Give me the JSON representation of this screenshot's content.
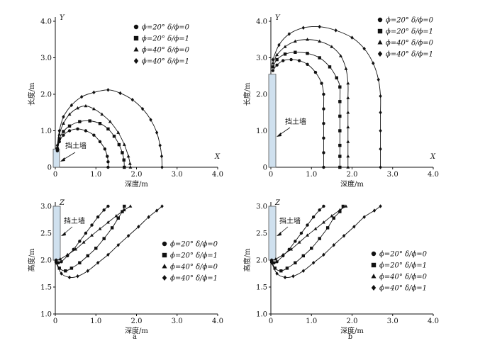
{
  "panel_labels": [
    "a",
    "b"
  ],
  "wall_label": "挡土墙",
  "legend_entries": [
    "ϕ=20°  δ/ϕ=0",
    "ϕ=20°  δ/ϕ=1",
    "ϕ=40°  δ/ϕ=0",
    "ϕ=40°  δ/ϕ=1"
  ],
  "chart_data": [
    {
      "id": "top-left",
      "type": "line",
      "xlabel": "深度/m",
      "ylabel": "长度/m",
      "x_axis_letter": "X",
      "y_axis_letter": "Y",
      "xlim": [
        0,
        4
      ],
      "ylim": [
        0,
        4
      ],
      "xticks": [
        "0",
        "1.0",
        "2.0",
        "3.0",
        "4.0"
      ],
      "yticks": [
        "0",
        "1.0",
        "2.0",
        "3.0",
        "4.0"
      ],
      "legend_position": "top-right",
      "wall": {
        "x": [
          0,
          0.05
        ],
        "y": [
          0,
          0.5
        ]
      },
      "series": [
        {
          "name": "ϕ=20°  δ/ϕ=0",
          "marker": "circle",
          "points": [
            [
              0.05,
              0.45
            ],
            [
              0.1,
              0.7
            ],
            [
              0.2,
              0.88
            ],
            [
              0.35,
              1.0
            ],
            [
              0.55,
              1.05
            ],
            [
              0.75,
              1.0
            ],
            [
              0.95,
              0.88
            ],
            [
              1.1,
              0.7
            ],
            [
              1.22,
              0.5
            ],
            [
              1.28,
              0.3
            ],
            [
              1.3,
              0.15
            ],
            [
              1.3,
              0
            ]
          ]
        },
        {
          "name": "ϕ=20°  δ/ϕ=1",
          "marker": "square",
          "points": [
            [
              0.05,
              0.5
            ],
            [
              0.1,
              0.78
            ],
            [
              0.2,
              0.98
            ],
            [
              0.35,
              1.13
            ],
            [
              0.6,
              1.25
            ],
            [
              0.85,
              1.27
            ],
            [
              1.1,
              1.2
            ],
            [
              1.3,
              1.05
            ],
            [
              1.45,
              0.85
            ],
            [
              1.57,
              0.62
            ],
            [
              1.65,
              0.4
            ],
            [
              1.69,
              0.2
            ],
            [
              1.7,
              0
            ]
          ]
        },
        {
          "name": "ϕ=40°  δ/ϕ=0",
          "marker": "triangle",
          "points": [
            [
              0.05,
              0.55
            ],
            [
              0.1,
              0.9
            ],
            [
              0.2,
              1.2
            ],
            [
              0.35,
              1.45
            ],
            [
              0.55,
              1.62
            ],
            [
              0.75,
              1.68
            ],
            [
              0.95,
              1.6
            ],
            [
              1.15,
              1.45
            ],
            [
              1.35,
              1.25
            ],
            [
              1.55,
              0.95
            ],
            [
              1.7,
              0.62
            ],
            [
              1.8,
              0.3
            ],
            [
              1.84,
              0.1
            ],
            [
              1.85,
              0
            ]
          ]
        },
        {
          "name": "ϕ=40°  δ/ϕ=1",
          "marker": "diamond",
          "points": [
            [
              0.05,
              0.6
            ],
            [
              0.1,
              1.0
            ],
            [
              0.2,
              1.38
            ],
            [
              0.4,
              1.7
            ],
            [
              0.65,
              1.93
            ],
            [
              0.95,
              2.05
            ],
            [
              1.3,
              2.12
            ],
            [
              1.6,
              2.03
            ],
            [
              1.9,
              1.85
            ],
            [
              2.15,
              1.6
            ],
            [
              2.35,
              1.3
            ],
            [
              2.5,
              0.95
            ],
            [
              2.58,
              0.6
            ],
            [
              2.62,
              0.3
            ],
            [
              2.63,
              0
            ]
          ]
        }
      ]
    },
    {
      "id": "top-right",
      "type": "line",
      "xlabel": "深度/m",
      "ylabel": "长度/m",
      "x_axis_letter": "X",
      "y_axis_letter": "Y",
      "xlim": [
        0,
        4
      ],
      "ylim": [
        0,
        4
      ],
      "xticks": [
        "0",
        "1.0",
        "2.0",
        "3.0",
        "4.0"
      ],
      "yticks": [
        "0",
        "1.0",
        "2.0",
        "3.0",
        "4.0"
      ],
      "legend_position": "top-right",
      "wall": {
        "x": [
          0,
          0.07
        ],
        "y": [
          0,
          2.55
        ]
      },
      "series": [
        {
          "name": "ϕ=20°  δ/ϕ=0",
          "marker": "circle",
          "points": [
            [
              0.05,
              2.65
            ],
            [
              0.15,
              2.8
            ],
            [
              0.3,
              2.92
            ],
            [
              0.5,
              2.95
            ],
            [
              0.7,
              2.92
            ],
            [
              0.9,
              2.82
            ],
            [
              1.1,
              2.6
            ],
            [
              1.25,
              2.3
            ],
            [
              1.3,
              2.0
            ],
            [
              1.3,
              1.6
            ],
            [
              1.3,
              1.2
            ],
            [
              1.3,
              0.8
            ],
            [
              1.3,
              0.4
            ],
            [
              1.3,
              0
            ]
          ]
        },
        {
          "name": "ϕ=20°  δ/ϕ=1",
          "marker": "square",
          "points": [
            [
              0.05,
              2.75
            ],
            [
              0.15,
              2.95
            ],
            [
              0.35,
              3.1
            ],
            [
              0.6,
              3.15
            ],
            [
              0.9,
              3.12
            ],
            [
              1.2,
              3.0
            ],
            [
              1.45,
              2.75
            ],
            [
              1.62,
              2.45
            ],
            [
              1.7,
              2.2
            ],
            [
              1.7,
              1.8
            ],
            [
              1.7,
              1.4
            ],
            [
              1.7,
              1.0
            ],
            [
              1.7,
              0.6
            ],
            [
              1.7,
              0.3
            ],
            [
              1.7,
              0
            ]
          ]
        },
        {
          "name": "ϕ=40°  δ/ϕ=0",
          "marker": "triangle",
          "points": [
            [
              0.05,
              2.85
            ],
            [
              0.15,
              3.08
            ],
            [
              0.35,
              3.3
            ],
            [
              0.6,
              3.45
            ],
            [
              0.9,
              3.5
            ],
            [
              1.2,
              3.45
            ],
            [
              1.5,
              3.3
            ],
            [
              1.72,
              3.05
            ],
            [
              1.85,
              2.7
            ],
            [
              1.9,
              2.3
            ],
            [
              1.9,
              1.9
            ],
            [
              1.9,
              1.5
            ],
            [
              1.9,
              1.1
            ],
            [
              1.9,
              0.7
            ],
            [
              1.9,
              0.3
            ],
            [
              1.9,
              0
            ]
          ]
        },
        {
          "name": "ϕ=40°  δ/ϕ=1",
          "marker": "diamond",
          "points": [
            [
              0.05,
              2.95
            ],
            [
              0.2,
              3.35
            ],
            [
              0.45,
              3.65
            ],
            [
              0.8,
              3.82
            ],
            [
              1.2,
              3.85
            ],
            [
              1.6,
              3.75
            ],
            [
              2.0,
              3.55
            ],
            [
              2.3,
              3.25
            ],
            [
              2.52,
              2.85
            ],
            [
              2.65,
              2.4
            ],
            [
              2.7,
              1.95
            ],
            [
              2.7,
              1.5
            ],
            [
              2.7,
              1.0
            ],
            [
              2.7,
              0.5
            ],
            [
              2.7,
              0
            ]
          ]
        }
      ]
    },
    {
      "id": "bottom-left",
      "type": "line",
      "xlabel": "深度/m",
      "ylabel": "高度/m",
      "x_axis_letter": "",
      "y_axis_letter": "Z",
      "xlim": [
        0,
        4
      ],
      "ylim": [
        1.0,
        3.0
      ],
      "xticks": [
        "0",
        "1.0",
        "2.0",
        "3.0",
        "4.0"
      ],
      "yticks": [
        "1.0",
        "1.5",
        "2.0",
        "2.5",
        "3.0"
      ],
      "legend_position": "right",
      "wall": {
        "x": [
          0,
          0.07
        ],
        "y": [
          2.0,
          3.0
        ]
      },
      "series": [
        {
          "name": "ϕ=20°  δ/ϕ=0",
          "marker": "circle",
          "points": [
            [
              0.02,
              2.0
            ],
            [
              0.08,
              1.95
            ],
            [
              0.15,
              1.97
            ],
            [
              0.3,
              2.08
            ],
            [
              0.45,
              2.2
            ],
            [
              0.6,
              2.35
            ],
            [
              0.75,
              2.5
            ],
            [
              0.9,
              2.65
            ],
            [
              1.05,
              2.8
            ],
            [
              1.2,
              2.93
            ],
            [
              1.3,
              3.0
            ]
          ]
        },
        {
          "name": "ϕ=20°  δ/ϕ=1",
          "marker": "square",
          "points": [
            [
              0.02,
              1.98
            ],
            [
              0.1,
              1.85
            ],
            [
              0.25,
              1.8
            ],
            [
              0.4,
              1.85
            ],
            [
              0.6,
              1.95
            ],
            [
              0.8,
              2.08
            ],
            [
              1.0,
              2.22
            ],
            [
              1.2,
              2.4
            ],
            [
              1.4,
              2.6
            ],
            [
              1.55,
              2.78
            ],
            [
              1.65,
              2.9
            ],
            [
              1.7,
              3.0
            ]
          ]
        },
        {
          "name": "ϕ=40°  δ/ϕ=0",
          "marker": "triangle",
          "points": [
            [
              0.02,
              2.0
            ],
            [
              0.12,
              2.02
            ],
            [
              0.3,
              2.1
            ],
            [
              0.5,
              2.2
            ],
            [
              0.7,
              2.33
            ],
            [
              0.9,
              2.46
            ],
            [
              1.1,
              2.58
            ],
            [
              1.3,
              2.7
            ],
            [
              1.5,
              2.82
            ],
            [
              1.7,
              2.93
            ],
            [
              1.85,
              3.0
            ]
          ]
        },
        {
          "name": "ϕ=40°  δ/ϕ=1",
          "marker": "diamond",
          "points": [
            [
              0.02,
              1.95
            ],
            [
              0.15,
              1.75
            ],
            [
              0.35,
              1.68
            ],
            [
              0.55,
              1.7
            ],
            [
              0.8,
              1.8
            ],
            [
              1.05,
              1.95
            ],
            [
              1.3,
              2.1
            ],
            [
              1.55,
              2.28
            ],
            [
              1.8,
              2.45
            ],
            [
              2.05,
              2.62
            ],
            [
              2.3,
              2.8
            ],
            [
              2.5,
              2.92
            ],
            [
              2.63,
              3.0
            ]
          ]
        }
      ]
    },
    {
      "id": "bottom-right",
      "type": "line",
      "xlabel": "深度/m",
      "ylabel": "高度/m",
      "x_axis_letter": "",
      "y_axis_letter": "Z",
      "xlim": [
        0,
        4
      ],
      "ylim": [
        1.0,
        3.0
      ],
      "xticks": [
        "0",
        "1.0",
        "2.0",
        "3.0",
        "4.0"
      ],
      "yticks": [
        "1.0",
        "1.5",
        "2.0",
        "2.5",
        "3.0"
      ],
      "legend_position": "right",
      "wall": {
        "x": [
          0,
          0.07
        ],
        "y": [
          2.0,
          3.0
        ]
      },
      "series": [
        {
          "name": "ϕ=20°  δ/ϕ=0",
          "marker": "circle",
          "points": [
            [
              0.02,
              2.0
            ],
            [
              0.08,
              1.95
            ],
            [
              0.15,
              1.97
            ],
            [
              0.3,
              2.08
            ],
            [
              0.45,
              2.2
            ],
            [
              0.6,
              2.35
            ],
            [
              0.75,
              2.5
            ],
            [
              0.9,
              2.65
            ],
            [
              1.05,
              2.8
            ],
            [
              1.2,
              2.93
            ],
            [
              1.3,
              3.0
            ]
          ]
        },
        {
          "name": "ϕ=20°  δ/ϕ=1",
          "marker": "square",
          "points": [
            [
              0.02,
              1.98
            ],
            [
              0.1,
              1.85
            ],
            [
              0.25,
              1.8
            ],
            [
              0.4,
              1.85
            ],
            [
              0.6,
              1.95
            ],
            [
              0.8,
              2.08
            ],
            [
              1.0,
              2.22
            ],
            [
              1.2,
              2.4
            ],
            [
              1.4,
              2.6
            ],
            [
              1.55,
              2.78
            ],
            [
              1.7,
              2.9
            ],
            [
              1.78,
              3.0
            ]
          ]
        },
        {
          "name": "ϕ=40°  δ/ϕ=0",
          "marker": "triangle",
          "points": [
            [
              0.02,
              2.0
            ],
            [
              0.12,
              2.02
            ],
            [
              0.3,
              2.1
            ],
            [
              0.5,
              2.2
            ],
            [
              0.7,
              2.33
            ],
            [
              0.9,
              2.46
            ],
            [
              1.1,
              2.58
            ],
            [
              1.3,
              2.7
            ],
            [
              1.5,
              2.82
            ],
            [
              1.7,
              2.93
            ],
            [
              1.85,
              3.0
            ]
          ]
        },
        {
          "name": "ϕ=40°  δ/ϕ=1",
          "marker": "diamond",
          "points": [
            [
              0.02,
              1.95
            ],
            [
              0.15,
              1.75
            ],
            [
              0.35,
              1.68
            ],
            [
              0.55,
              1.7
            ],
            [
              0.8,
              1.8
            ],
            [
              1.05,
              1.95
            ],
            [
              1.3,
              2.1
            ],
            [
              1.55,
              2.28
            ],
            [
              1.8,
              2.45
            ],
            [
              2.05,
              2.62
            ],
            [
              2.3,
              2.8
            ],
            [
              2.55,
              2.92
            ],
            [
              2.7,
              3.0
            ]
          ]
        }
      ]
    }
  ]
}
